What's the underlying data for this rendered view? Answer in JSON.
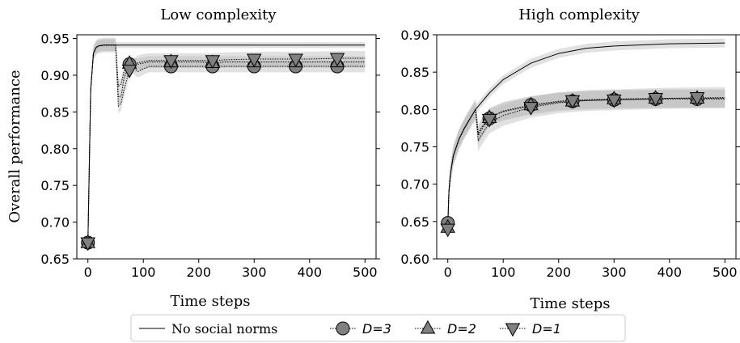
{
  "chart_data": [
    {
      "type": "line",
      "title": "Low complexity",
      "xlabel": "Time steps",
      "ylabel": "Overall performance",
      "xlim": [
        -20,
        520
      ],
      "ylim": [
        0.65,
        0.955
      ],
      "xticks": [
        0,
        100,
        200,
        300,
        400,
        500
      ],
      "yticks": [
        0.65,
        0.7,
        0.75,
        0.8,
        0.85,
        0.9,
        0.95
      ],
      "ytick_labels": [
        "0.65",
        "0.70",
        "0.75",
        "0.80",
        "0.85",
        "0.90",
        "0.95"
      ],
      "series": [
        {
          "name": "No social norms",
          "style": "solid",
          "x": [
            0,
            5,
            10,
            15,
            20,
            30,
            40,
            50,
            500
          ],
          "y": [
            0.672,
            0.88,
            0.93,
            0.938,
            0.94,
            0.941,
            0.941,
            0.941,
            0.941
          ],
          "band": 0.004
        },
        {
          "name": "D=3",
          "style": "dotted",
          "marker": "circle",
          "x": [
            0,
            5,
            10,
            15,
            20,
            30,
            40,
            50,
            55,
            60,
            65,
            75,
            90,
            110,
            150,
            200,
            225,
            250,
            300,
            350,
            375,
            400,
            450,
            500
          ],
          "y": [
            0.672,
            0.88,
            0.93,
            0.938,
            0.94,
            0.941,
            0.941,
            0.941,
            0.885,
            0.888,
            0.905,
            0.915,
            0.905,
            0.912,
            0.912,
            0.912,
            0.912,
            0.912,
            0.912,
            0.912,
            0.912,
            0.912,
            0.912,
            0.912
          ],
          "markers_x": [
            0,
            75,
            150,
            225,
            300,
            375,
            450
          ],
          "markers_y": [
            0.672,
            0.915,
            0.912,
            0.912,
            0.912,
            0.912,
            0.912
          ],
          "band": 0.008
        },
        {
          "name": "D=2",
          "style": "dotted",
          "marker": "triangle-up",
          "x": [
            0,
            5,
            10,
            15,
            20,
            30,
            40,
            50,
            55,
            60,
            65,
            75,
            90,
            110,
            150,
            200,
            225,
            250,
            300,
            350,
            375,
            400,
            450,
            500
          ],
          "y": [
            0.672,
            0.88,
            0.93,
            0.938,
            0.94,
            0.941,
            0.941,
            0.941,
            0.87,
            0.872,
            0.895,
            0.916,
            0.915,
            0.918,
            0.918,
            0.918,
            0.917,
            0.918,
            0.918,
            0.918,
            0.918,
            0.918,
            0.918,
            0.918
          ],
          "markers_x": [
            0,
            75,
            150,
            225,
            300,
            375,
            450
          ],
          "markers_y": [
            0.672,
            0.916,
            0.918,
            0.917,
            0.918,
            0.918,
            0.918
          ],
          "band": 0.008
        },
        {
          "name": "D=1",
          "style": "dotted",
          "marker": "triangle-down",
          "x": [
            0,
            5,
            10,
            15,
            20,
            30,
            40,
            50,
            55,
            60,
            65,
            75,
            90,
            110,
            150,
            200,
            225,
            250,
            300,
            350,
            375,
            400,
            450,
            500
          ],
          "y": [
            0.672,
            0.88,
            0.93,
            0.938,
            0.94,
            0.941,
            0.941,
            0.941,
            0.858,
            0.862,
            0.88,
            0.907,
            0.917,
            0.92,
            0.92,
            0.92,
            0.92,
            0.921,
            0.922,
            0.922,
            0.922,
            0.922,
            0.923,
            0.923
          ],
          "markers_x": [
            0,
            75,
            150,
            225,
            300,
            375,
            450
          ],
          "markers_y": [
            0.672,
            0.907,
            0.92,
            0.92,
            0.922,
            0.922,
            0.923
          ],
          "band": 0.01
        }
      ]
    },
    {
      "type": "line",
      "title": "High complexity",
      "xlabel": "Time steps",
      "ylabel": "",
      "xlim": [
        -20,
        520
      ],
      "ylim": [
        0.6,
        0.9
      ],
      "xticks": [
        0,
        100,
        200,
        300,
        400,
        500
      ],
      "yticks": [
        0.6,
        0.65,
        0.7,
        0.75,
        0.8,
        0.85,
        0.9
      ],
      "ytick_labels": [
        "0.60",
        "0.65",
        "0.70",
        "0.75",
        "0.80",
        "0.85",
        "0.90"
      ],
      "series": [
        {
          "name": "No social norms",
          "style": "solid",
          "x": [
            0,
            2,
            5,
            10,
            20,
            30,
            50,
            75,
            100,
            150,
            200,
            250,
            300,
            400,
            500
          ],
          "y": [
            0.645,
            0.69,
            0.715,
            0.738,
            0.76,
            0.775,
            0.8,
            0.822,
            0.84,
            0.862,
            0.875,
            0.882,
            0.885,
            0.888,
            0.889
          ],
          "band": 0.006
        },
        {
          "name": "D=3",
          "style": "dotted",
          "marker": "circle",
          "x": [
            0,
            2,
            5,
            10,
            20,
            30,
            50,
            55,
            60,
            75,
            100,
            150,
            200,
            250,
            300,
            400,
            500
          ],
          "y": [
            0.645,
            0.69,
            0.715,
            0.738,
            0.76,
            0.775,
            0.8,
            0.765,
            0.772,
            0.79,
            0.797,
            0.805,
            0.81,
            0.812,
            0.813,
            0.814,
            0.814
          ],
          "markers_x": [
            0,
            75,
            150,
            225,
            300,
            375,
            450
          ],
          "markers_y": [
            0.648,
            0.788,
            0.806,
            0.811,
            0.813,
            0.814,
            0.814
          ],
          "band": 0.012
        },
        {
          "name": "D=2",
          "style": "dotted",
          "marker": "triangle-up",
          "x": [
            0,
            2,
            5,
            10,
            20,
            30,
            50,
            55,
            60,
            75,
            100,
            150,
            200,
            250,
            300,
            400,
            500
          ],
          "y": [
            0.645,
            0.69,
            0.715,
            0.738,
            0.76,
            0.775,
            0.8,
            0.768,
            0.775,
            0.789,
            0.798,
            0.806,
            0.811,
            0.813,
            0.814,
            0.815,
            0.815
          ],
          "markers_x": [
            0,
            75,
            150,
            225,
            300,
            375,
            450
          ],
          "markers_y": [
            0.642,
            0.789,
            0.806,
            0.811,
            0.814,
            0.815,
            0.815
          ],
          "band": 0.012
        },
        {
          "name": "D=1",
          "style": "dotted",
          "marker": "triangle-down",
          "x": [
            0,
            2,
            5,
            10,
            20,
            30,
            50,
            55,
            60,
            75,
            100,
            150,
            200,
            250,
            300,
            400,
            500
          ],
          "y": [
            0.645,
            0.69,
            0.715,
            0.738,
            0.76,
            0.775,
            0.8,
            0.758,
            0.765,
            0.782,
            0.792,
            0.803,
            0.809,
            0.812,
            0.813,
            0.815,
            0.816
          ],
          "markers_x": [
            0,
            75,
            150,
            225,
            300,
            375,
            450
          ],
          "markers_y": [
            0.64,
            0.787,
            0.803,
            0.812,
            0.813,
            0.815,
            0.816
          ],
          "band": 0.014
        }
      ]
    }
  ],
  "legend": {
    "items": [
      {
        "label": "No social norms",
        "marker": "none",
        "style": "solid"
      },
      {
        "label": "D=3",
        "marker": "circle",
        "style": "dotted"
      },
      {
        "label": "D=2",
        "marker": "triangle-up",
        "style": "dotted"
      },
      {
        "label": "D=1",
        "marker": "triangle-down",
        "style": "dotted"
      }
    ]
  },
  "colors": {
    "line": "#000000",
    "marker_fill": "#808080",
    "marker_edge": "#000000",
    "band": "#bdbdbd"
  }
}
